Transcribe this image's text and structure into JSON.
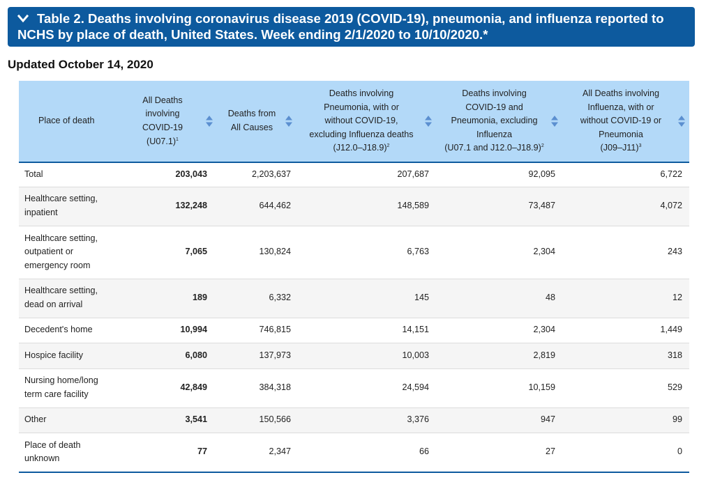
{
  "banner": {
    "title_line1": "Table 2. Deaths involving coronavirus disease 2019 (COVID-19), pneumonia, and influenza reported to",
    "title_line2": "NCHS by place of death, United States. Week ending 2/1/2020 to 10/10/2020.*",
    "chevron_icon": "chevron-down-icon",
    "bg_color": "#0d5a9e"
  },
  "updated": "Updated October 14, 2020",
  "table": {
    "header_bg": "#b3d9f8",
    "columns": [
      {
        "label": "Place of death",
        "sup": "",
        "sortable": false
      },
      {
        "label": "All Deaths involving COVID-19 (U07.1)",
        "sup": "1",
        "sortable": true
      },
      {
        "label": "Deaths from All Causes",
        "sup": "",
        "sortable": true
      },
      {
        "label": "Deaths involving Pneumonia, with or without COVID-19, excluding Influenza deaths (J12.0–J18.9)",
        "sup": "2",
        "sortable": true
      },
      {
        "label": "Deaths involving COVID-19 and Pneumonia, excluding Influenza (U07.1 and J12.0–J18.9)",
        "sup": "2",
        "sortable": true
      },
      {
        "label": "All Deaths involving Influenza, with or without COVID-19 or Pneumonia (J09–J11)",
        "sup": "3",
        "sortable": true
      }
    ],
    "rows": [
      {
        "place": "Total",
        "covid": "203,043",
        "all_causes": "2,203,637",
        "pneumonia": "207,687",
        "covid_pneumonia": "92,095",
        "influenza": "6,722"
      },
      {
        "place": "Healthcare setting, inpatient",
        "covid": "132,248",
        "all_causes": "644,462",
        "pneumonia": "148,589",
        "covid_pneumonia": "73,487",
        "influenza": "4,072"
      },
      {
        "place": "Healthcare setting, outpatient or emergency room",
        "covid": "7,065",
        "all_causes": "130,824",
        "pneumonia": "6,763",
        "covid_pneumonia": "2,304",
        "influenza": "243"
      },
      {
        "place": "Healthcare setting, dead on arrival",
        "covid": "189",
        "all_causes": "6,332",
        "pneumonia": "145",
        "covid_pneumonia": "48",
        "influenza": "12"
      },
      {
        "place": "Decedent's home",
        "covid": "10,994",
        "all_causes": "746,815",
        "pneumonia": "14,151",
        "covid_pneumonia": "2,304",
        "influenza": "1,449"
      },
      {
        "place": "Hospice facility",
        "covid": "6,080",
        "all_causes": "137,973",
        "pneumonia": "10,003",
        "covid_pneumonia": "2,819",
        "influenza": "318"
      },
      {
        "place": "Nursing home/long term care facility",
        "covid": "42,849",
        "all_causes": "384,318",
        "pneumonia": "24,594",
        "covid_pneumonia": "10,159",
        "influenza": "529"
      },
      {
        "place": "Other",
        "covid": "3,541",
        "all_causes": "150,566",
        "pneumonia": "3,376",
        "covid_pneumonia": "947",
        "influenza": "99"
      },
      {
        "place": "Place of death unknown",
        "covid": "77",
        "all_causes": "2,347",
        "pneumonia": "66",
        "covid_pneumonia": "27",
        "influenza": "0"
      }
    ]
  }
}
